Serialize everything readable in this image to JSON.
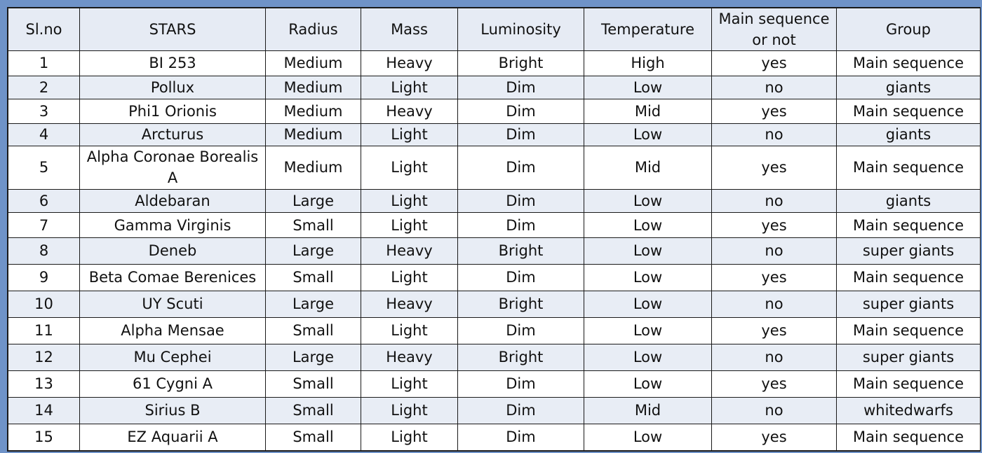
{
  "table": {
    "headers": [
      "Sl.no",
      "STARS",
      "Radius",
      "Mass",
      "Luminosity",
      "Temperature",
      "Main sequence or not",
      "Group"
    ],
    "rows": [
      [
        "1",
        "BI 253",
        "Medium",
        "Heavy",
        "Bright",
        "High",
        "yes",
        "Main sequence"
      ],
      [
        "2",
        "Pollux",
        "Medium",
        "Light",
        "Dim",
        "Low",
        "no",
        "giants"
      ],
      [
        "3",
        "Phi1 Orionis",
        "Medium",
        "Heavy",
        "Dim",
        "Mid",
        "yes",
        "Main sequence"
      ],
      [
        "4",
        "Arcturus",
        "Medium",
        "Light",
        "Dim",
        "Low",
        "no",
        "giants"
      ],
      [
        "5",
        "Alpha Coronae Borealis A",
        "Medium",
        "Light",
        "Dim",
        "Mid",
        "yes",
        "Main sequence"
      ],
      [
        "6",
        "Aldebaran",
        "Large",
        "Light",
        "Dim",
        "Low",
        "no",
        "giants"
      ],
      [
        "7",
        "Gamma Virginis",
        "Small",
        "Light",
        "Dim",
        "Low",
        "yes",
        "Main sequence"
      ],
      [
        "8",
        "Deneb",
        "Large",
        "Heavy",
        "Bright",
        "Low",
        "no",
        "super giants"
      ],
      [
        "9",
        "Beta Comae Berenices",
        "Small",
        "Light",
        "Dim",
        "Low",
        "yes",
        "Main sequence"
      ],
      [
        "10",
        "UY Scuti",
        "Large",
        "Heavy",
        "Bright",
        "Low",
        "no",
        "super giants"
      ],
      [
        "11",
        "Alpha Mensae",
        "Small",
        "Light",
        "Dim",
        "Low",
        "yes",
        "Main sequence"
      ],
      [
        "12",
        "Mu Cephei",
        "Large",
        "Heavy",
        "Bright",
        "Low",
        "no",
        "super giants"
      ],
      [
        "13",
        "61 Cygni A",
        "Small",
        "Light",
        "Dim",
        "Low",
        "yes",
        "Main sequence"
      ],
      [
        "14",
        "Sirius B",
        "Small",
        "Light",
        "Dim",
        "Mid",
        "no",
        "whitedwarfs"
      ],
      [
        "15",
        "EZ Aquarii A",
        "Small",
        "Light",
        "Dim",
        "Low",
        "yes",
        "Main sequence"
      ]
    ]
  },
  "colors": {
    "frame_border": "#6f93c8",
    "header_bg": "#e6ebf4",
    "stripe_bg": "#e8edf5",
    "grid_line": "#1a1a1a"
  }
}
